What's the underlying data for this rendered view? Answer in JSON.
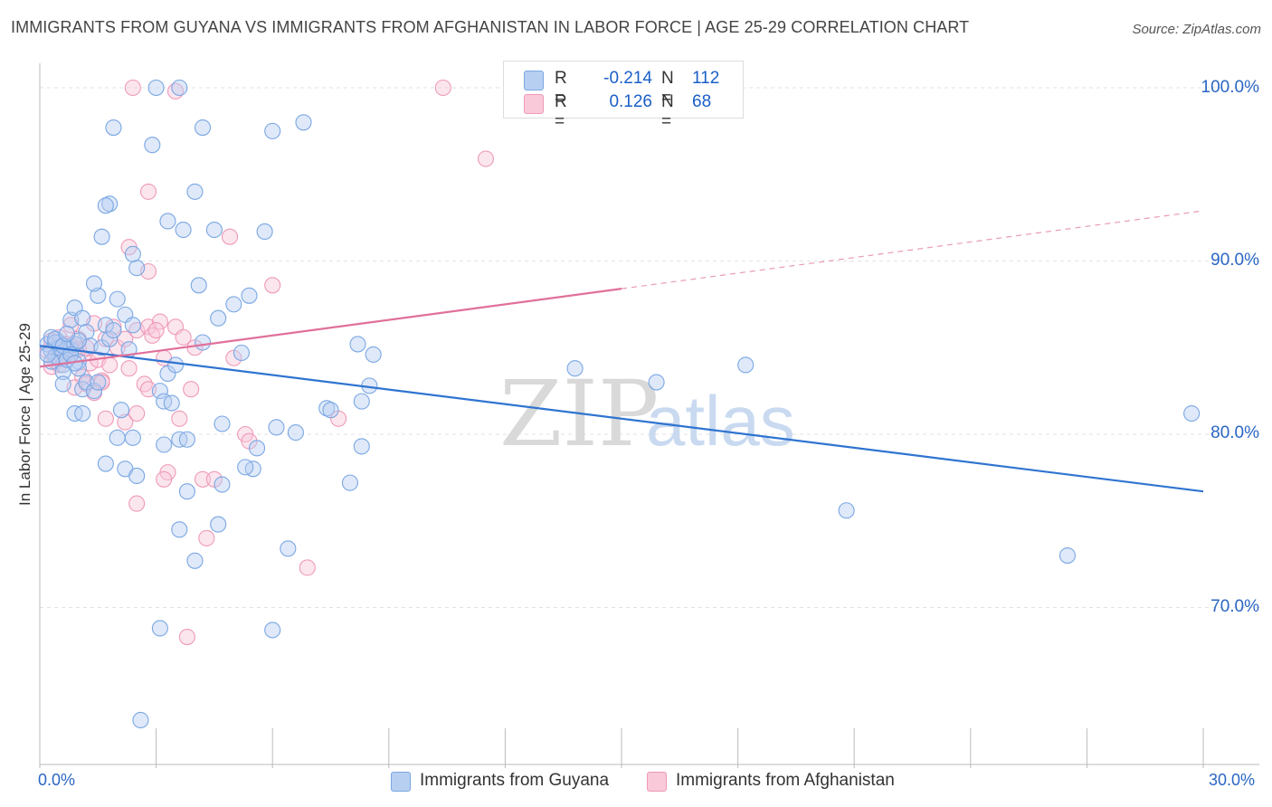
{
  "title": "IMMIGRANTS FROM GUYANA VS IMMIGRANTS FROM AFGHANISTAN IN LABOR FORCE | AGE 25-29 CORRELATION CHART",
  "source": "Source: ZipAtlas.com",
  "watermark": {
    "zip": "ZIP",
    "atlas": "atlas"
  },
  "legend": {
    "r_label": "R =",
    "n_label": "N =",
    "series": [
      {
        "name": "Immigrants from Guyana",
        "r": "-0.214",
        "n": "112",
        "color": "#7aa7e3",
        "fill": "#b7cff1"
      },
      {
        "name": "Immigrants from Afghanistan",
        "r": "0.126",
        "n": "68",
        "color": "#ef9ab8",
        "fill": "#f9c8d9"
      }
    ]
  },
  "chart_data": {
    "type": "scatter",
    "title": "IMMIGRANTS FROM GUYANA VS IMMIGRANTS FROM AFGHANISTAN IN LABOR FORCE | AGE 25-29 CORRELATION CHART",
    "xlabel": "",
    "ylabel": "In Labor Force | Age 25-29",
    "xlim": [
      0,
      30
    ],
    "ylim": [
      60.5,
      103
    ],
    "x_tick_labels": [
      "0.0%",
      "30.0%"
    ],
    "y_ticks": [
      70,
      80,
      90,
      100
    ],
    "y_tick_labels": [
      "70.0%",
      "80.0%",
      "90.0%",
      "100.0%"
    ],
    "grid": true,
    "series": [
      {
        "name": "Immigrants from Guyana",
        "color": "#2f74d0",
        "trend": {
          "x0": 0,
          "y0": 85.1,
          "x1": 30,
          "y1": 76.7,
          "dashed_from": null
        },
        "points": [
          [
            0.2,
            85.2
          ],
          [
            0.3,
            84.8
          ],
          [
            0.4,
            84.5
          ],
          [
            0.5,
            85.3
          ],
          [
            0.6,
            84.0
          ],
          [
            0.3,
            85.6
          ],
          [
            0.5,
            84.4
          ],
          [
            0.7,
            85.0
          ],
          [
            0.4,
            85.3
          ],
          [
            0.8,
            84.9
          ],
          [
            0.6,
            83.6
          ],
          [
            0.9,
            85.2
          ],
          [
            1.0,
            84.2
          ],
          [
            0.8,
            86.6
          ],
          [
            0.9,
            87.3
          ],
          [
            1.1,
            86.7
          ],
          [
            1.2,
            85.9
          ],
          [
            1.0,
            83.8
          ],
          [
            1.3,
            85.1
          ],
          [
            0.7,
            84.3
          ],
          [
            0.6,
            82.9
          ],
          [
            1.1,
            82.6
          ],
          [
            1.2,
            83.0
          ],
          [
            0.9,
            81.2
          ],
          [
            1.1,
            81.2
          ],
          [
            1.4,
            82.5
          ],
          [
            1.5,
            83.0
          ],
          [
            1.6,
            85.0
          ],
          [
            1.7,
            86.3
          ],
          [
            1.8,
            85.5
          ],
          [
            1.5,
            88.0
          ],
          [
            1.4,
            88.7
          ],
          [
            1.9,
            86.0
          ],
          [
            2.0,
            87.8
          ],
          [
            2.2,
            86.9
          ],
          [
            2.3,
            84.9
          ],
          [
            2.4,
            86.3
          ],
          [
            2.5,
            89.6
          ],
          [
            2.4,
            90.4
          ],
          [
            1.6,
            91.4
          ],
          [
            1.8,
            93.3
          ],
          [
            1.7,
            93.2
          ],
          [
            1.9,
            97.7
          ],
          [
            2.9,
            96.7
          ],
          [
            3.0,
            100.0
          ],
          [
            3.6,
            100.0
          ],
          [
            4.2,
            97.7
          ],
          [
            4.0,
            94.0
          ],
          [
            3.3,
            92.3
          ],
          [
            3.7,
            91.8
          ],
          [
            4.5,
            91.8
          ],
          [
            5.8,
            91.7
          ],
          [
            6.0,
            97.5
          ],
          [
            6.8,
            98.0
          ],
          [
            4.1,
            88.6
          ],
          [
            4.6,
            86.7
          ],
          [
            4.2,
            85.3
          ],
          [
            5.2,
            84.7
          ],
          [
            5.0,
            87.5
          ],
          [
            5.4,
            88.0
          ],
          [
            3.3,
            83.5
          ],
          [
            3.1,
            82.5
          ],
          [
            3.5,
            84.0
          ],
          [
            3.2,
            81.9
          ],
          [
            3.4,
            81.8
          ],
          [
            2.1,
            81.4
          ],
          [
            2.0,
            79.8
          ],
          [
            2.4,
            79.8
          ],
          [
            3.2,
            79.4
          ],
          [
            3.6,
            79.7
          ],
          [
            3.8,
            79.7
          ],
          [
            4.7,
            80.6
          ],
          [
            5.6,
            79.2
          ],
          [
            5.5,
            78.0
          ],
          [
            5.3,
            78.1
          ],
          [
            4.7,
            77.1
          ],
          [
            2.2,
            78.0
          ],
          [
            1.7,
            78.3
          ],
          [
            2.5,
            77.6
          ],
          [
            3.8,
            76.7
          ],
          [
            4.6,
            74.8
          ],
          [
            3.6,
            74.5
          ],
          [
            4.0,
            72.7
          ],
          [
            6.4,
            73.4
          ],
          [
            6.1,
            80.4
          ],
          [
            6.6,
            80.1
          ],
          [
            7.4,
            81.5
          ],
          [
            7.5,
            81.4
          ],
          [
            8.0,
            77.2
          ],
          [
            8.2,
            85.2
          ],
          [
            8.3,
            79.3
          ],
          [
            8.3,
            81.9
          ],
          [
            8.5,
            82.8
          ],
          [
            8.6,
            84.6
          ],
          [
            13.8,
            83.8
          ],
          [
            15.9,
            83.0
          ],
          [
            18.2,
            84.0
          ],
          [
            20.8,
            75.6
          ],
          [
            26.5,
            73.0
          ],
          [
            29.7,
            81.2
          ],
          [
            6.0,
            68.7
          ],
          [
            3.1,
            68.8
          ],
          [
            2.6,
            63.5
          ],
          [
            0.5,
            85.0
          ],
          [
            0.3,
            84.2
          ],
          [
            0.4,
            85.5
          ],
          [
            0.2,
            84.6
          ],
          [
            0.6,
            85.1
          ],
          [
            0.8,
            84.6
          ],
          [
            1.0,
            85.4
          ],
          [
            0.7,
            85.8
          ],
          [
            0.9,
            84.1
          ]
        ]
      },
      {
        "name": "Immigrants from Afghanistan",
        "color": "#e0709a",
        "trend": {
          "x0": 0,
          "y0": 83.9,
          "x1": 30,
          "y1": 92.9,
          "dashed_from": 15
        },
        "points": [
          [
            0.2,
            84.8
          ],
          [
            0.3,
            85.4
          ],
          [
            0.4,
            84.2
          ],
          [
            0.5,
            85.6
          ],
          [
            0.6,
            84.8
          ],
          [
            0.3,
            83.9
          ],
          [
            0.7,
            85.2
          ],
          [
            0.8,
            86.3
          ],
          [
            0.9,
            84.8
          ],
          [
            0.5,
            84.0
          ],
          [
            1.0,
            85.5
          ],
          [
            1.1,
            83.3
          ],
          [
            1.2,
            85.0
          ],
          [
            1.3,
            84.1
          ],
          [
            1.4,
            86.4
          ],
          [
            1.5,
            84.3
          ],
          [
            1.6,
            83.1
          ],
          [
            1.7,
            85.5
          ],
          [
            1.8,
            84.0
          ],
          [
            1.9,
            86.2
          ],
          [
            2.0,
            85.0
          ],
          [
            1.6,
            83.0
          ],
          [
            1.2,
            82.9
          ],
          [
            0.9,
            82.7
          ],
          [
            1.4,
            82.4
          ],
          [
            1.7,
            80.9
          ],
          [
            2.2,
            80.7
          ],
          [
            2.5,
            81.2
          ],
          [
            2.7,
            82.9
          ],
          [
            2.8,
            82.6
          ],
          [
            2.3,
            83.8
          ],
          [
            2.2,
            85.5
          ],
          [
            2.5,
            86.0
          ],
          [
            2.8,
            86.2
          ],
          [
            2.9,
            85.7
          ],
          [
            3.1,
            86.5
          ],
          [
            3.0,
            86.0
          ],
          [
            3.5,
            86.2
          ],
          [
            3.7,
            85.6
          ],
          [
            3.2,
            84.4
          ],
          [
            4.0,
            85.0
          ],
          [
            3.9,
            82.6
          ],
          [
            3.6,
            80.9
          ],
          [
            3.3,
            77.8
          ],
          [
            3.2,
            77.4
          ],
          [
            2.5,
            76.0
          ],
          [
            4.2,
            77.4
          ],
          [
            4.5,
            77.4
          ],
          [
            4.3,
            74.0
          ],
          [
            5.3,
            80.0
          ],
          [
            5.4,
            79.6
          ],
          [
            5.0,
            84.4
          ],
          [
            2.3,
            90.8
          ],
          [
            2.8,
            89.4
          ],
          [
            2.8,
            94.0
          ],
          [
            4.9,
            91.4
          ],
          [
            6.0,
            88.6
          ],
          [
            7.7,
            80.9
          ],
          [
            6.9,
            72.3
          ],
          [
            3.8,
            68.3
          ],
          [
            3.5,
            99.8
          ],
          [
            2.4,
            100.0
          ],
          [
            10.4,
            100.0
          ],
          [
            11.5,
            95.9
          ],
          [
            0.4,
            85.0
          ],
          [
            0.6,
            84.4
          ],
          [
            1.0,
            84.9
          ],
          [
            0.8,
            85.1
          ]
        ]
      }
    ]
  }
}
